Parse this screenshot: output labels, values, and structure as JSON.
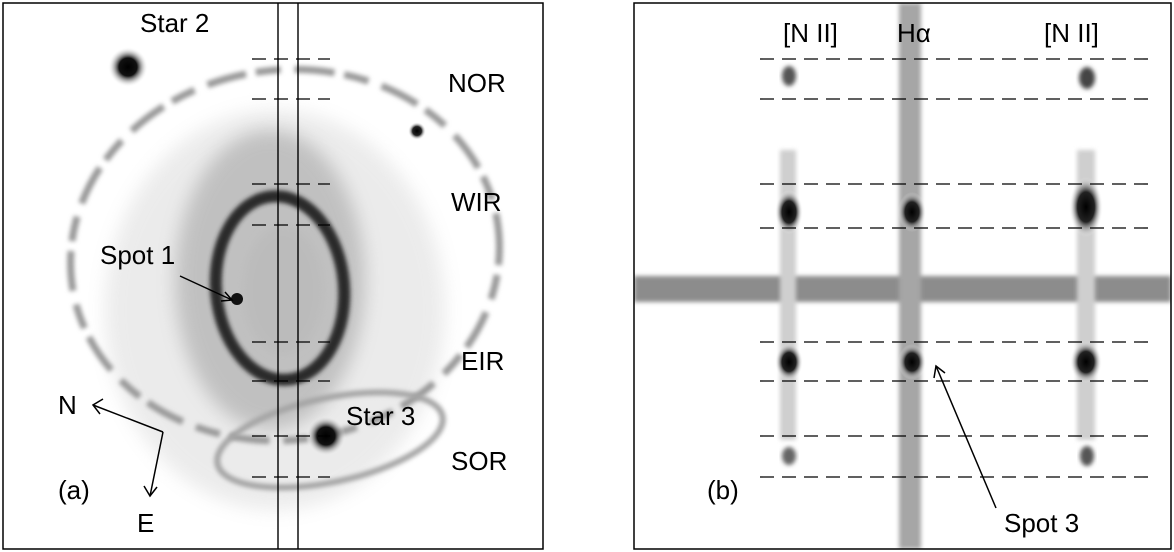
{
  "panel_a": {
    "panel_label": "(a)",
    "labels": {
      "star2": "Star 2",
      "star3": "Star 3",
      "spot1": "Spot 1",
      "nor": "NOR",
      "wir": "WIR",
      "eir": "EIR",
      "sor": "SOR"
    },
    "compass": {
      "north": "N",
      "east": "E"
    }
  },
  "panel_b": {
    "panel_label": "(b)",
    "lines": {
      "left_nii": "[N II]",
      "halpha": "Hα",
      "right_nii": "[N II]"
    },
    "spot3": "Spot 3"
  },
  "colors": {
    "ink": "#000000",
    "emission": "#111111",
    "nebula": "#9a9a9a"
  }
}
